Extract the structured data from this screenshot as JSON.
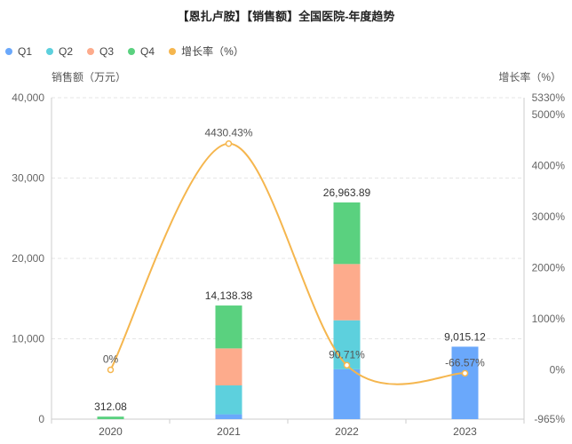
{
  "chart_data": {
    "type": "bar",
    "title": "【恩扎卢胺】【销售额】全国医院-年度趋势",
    "categories": [
      "2020",
      "2021",
      "2022",
      "2023"
    ],
    "series": [
      {
        "name": "Q1",
        "color": "#6aa8fb",
        "values": [
          0,
          600,
          6200,
          9015.12
        ]
      },
      {
        "name": "Q2",
        "color": "#5dd0dd",
        "values": [
          0,
          3600,
          6100,
          0
        ]
      },
      {
        "name": "Q3",
        "color": "#fdab8c",
        "values": [
          0,
          4600,
          7000,
          0
        ]
      },
      {
        "name": "Q4",
        "color": "#5ad17f",
        "values": [
          312.08,
          5338.38,
          7663.89,
          0
        ]
      }
    ],
    "totals": [
      "312.08",
      "14,138.38",
      "26,963.89",
      "9,015.12"
    ],
    "growth": {
      "name": "增长率（%）",
      "color": "#f5b64e",
      "values": [
        0,
        4430.43,
        90.71,
        -66.57
      ],
      "labels": [
        "0%",
        "4430.43%",
        "90.71%",
        "-66.57%"
      ]
    },
    "ylabel_left": "销售额（万元）",
    "ylabel_right": "增长率（%）",
    "yticks_left": [
      "0",
      "10,000",
      "20,000",
      "30,000",
      "40,000"
    ],
    "ylim_left": [
      0,
      40000
    ],
    "yticks_right": [
      "-965%",
      "0%",
      "1000%",
      "2000%",
      "3000%",
      "4000%",
      "5000%",
      "5330%"
    ],
    "ylim_right": [
      -965,
      5330
    ],
    "legend_position": "top-left",
    "grid": true
  }
}
